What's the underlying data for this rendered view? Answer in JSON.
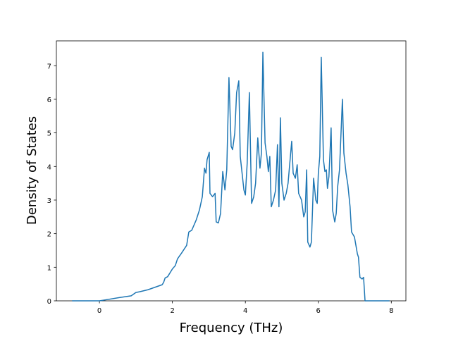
{
  "chart_data": {
    "type": "line",
    "xlabel": "Frequency (THz)",
    "ylabel": "Density of States",
    "x": [
      -0.75,
      0,
      0.17,
      0.56,
      0.87,
      1.0,
      1.1,
      1.33,
      1.72,
      1.76,
      1.8,
      1.87,
      2.0,
      2.08,
      2.14,
      2.25,
      2.39,
      2.45,
      2.53,
      2.65,
      2.74,
      2.82,
      2.88,
      2.92,
      2.95,
      3.01,
      3.03,
      3.1,
      3.17,
      3.2,
      3.26,
      3.32,
      3.38,
      3.44,
      3.49,
      3.55,
      3.61,
      3.65,
      3.71,
      3.76,
      3.82,
      3.86,
      3.92,
      3.96,
      4.0,
      4.05,
      4.11,
      4.17,
      4.23,
      4.28,
      4.34,
      4.4,
      4.44,
      4.48,
      4.54,
      4.59,
      4.63,
      4.67,
      4.71,
      4.77,
      4.83,
      4.88,
      4.92,
      4.96,
      5.0,
      5.06,
      5.12,
      5.17,
      5.21,
      5.27,
      5.31,
      5.37,
      5.42,
      5.46,
      5.54,
      5.6,
      5.64,
      5.68,
      5.71,
      5.77,
      5.81,
      5.87,
      5.93,
      5.97,
      6.0,
      6.04,
      6.08,
      6.14,
      6.18,
      6.22,
      6.25,
      6.29,
      6.35,
      6.39,
      6.45,
      6.49,
      6.53,
      6.58,
      6.66,
      6.7,
      6.76,
      6.81,
      6.87,
      6.91,
      6.99,
      7.07,
      7.1,
      7.14,
      7.2,
      7.24,
      7.28,
      7.95
    ],
    "series": [
      {
        "color": "#1f77b4",
        "values": [
          0,
          0,
          0.03,
          0.1,
          0.15,
          0.25,
          0.27,
          0.33,
          0.48,
          0.55,
          0.68,
          0.72,
          0.95,
          1.05,
          1.25,
          1.42,
          1.65,
          2.05,
          2.1,
          2.4,
          2.7,
          3.1,
          3.95,
          3.8,
          4.2,
          4.42,
          3.2,
          3.1,
          3.2,
          2.35,
          2.32,
          2.6,
          3.85,
          3.3,
          3.9,
          6.65,
          4.6,
          4.5,
          5.0,
          6.2,
          6.55,
          4.3,
          3.7,
          3.3,
          3.15,
          4.1,
          6.2,
          2.9,
          3.1,
          3.5,
          4.85,
          3.95,
          4.4,
          7.4,
          4.7,
          4.3,
          3.85,
          4.3,
          2.8,
          3.0,
          3.3,
          4.65,
          2.8,
          5.45,
          3.5,
          3.0,
          3.2,
          3.5,
          4.0,
          4.75,
          3.8,
          3.65,
          4.05,
          3.2,
          3.0,
          2.5,
          2.65,
          3.9,
          1.75,
          1.6,
          1.75,
          3.65,
          3.0,
          2.9,
          3.8,
          4.3,
          7.25,
          4.2,
          3.85,
          3.9,
          3.35,
          3.7,
          5.15,
          2.7,
          2.35,
          2.6,
          3.4,
          3.9,
          6.0,
          4.4,
          3.8,
          3.45,
          2.8,
          2.05,
          1.9,
          1.4,
          1.3,
          0.7,
          0.65,
          0.7,
          0,
          0
        ]
      }
    ],
    "xlim": [
      -1.18,
      8.4
    ],
    "ylim": [
      0,
      7.74
    ],
    "xticks": [
      0,
      2,
      4,
      6,
      8
    ],
    "yticks": [
      0,
      1,
      2,
      3,
      4,
      5,
      6,
      7
    ]
  }
}
